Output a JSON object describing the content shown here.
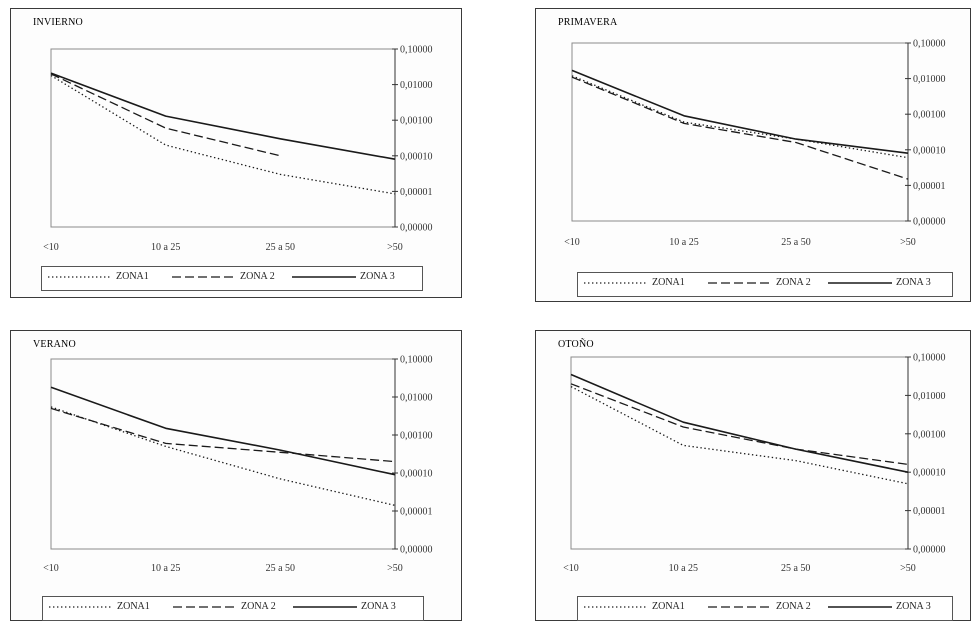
{
  "zone_labels": [
    "ZONA1",
    "ZONA 2",
    "ZONA 3"
  ],
  "colors": {
    "line": "#1a1a1a",
    "zona1": "#444444",
    "zona2": "#2b2b2b",
    "zona3": "#111111"
  },
  "chart_data": [
    {
      "type": "line",
      "title": "INVIERNO",
      "categories": [
        "<10",
        "10 a 25",
        "25 a 50",
        ">50"
      ],
      "y_ticks": [
        "0,10000",
        "0,01000",
        "0,00100",
        "0,00010",
        "0,00001",
        "0,00000"
      ],
      "yscale": "log",
      "ylim": [
        1e-06,
        0.1
      ],
      "legend_labels": [
        "ZONA1",
        "ZONA 2",
        "ZONA 3"
      ],
      "series": [
        {
          "name": "ZONA1",
          "style": "dotted",
          "values": [
            0.018,
            0.0002,
            3e-05,
            8.5e-06
          ]
        },
        {
          "name": "ZONA 2",
          "style": "dashed",
          "values": [
            0.02,
            0.0006,
            0.0001,
            null
          ]
        },
        {
          "name": "ZONA 3",
          "style": "solid",
          "values": [
            0.021,
            0.0013,
            0.0003,
            8e-05
          ]
        }
      ]
    },
    {
      "type": "line",
      "title": "PRIMAVERA",
      "categories": [
        "<10",
        "10 a 25",
        "25 a 50",
        ">50"
      ],
      "y_ticks": [
        "0,10000",
        "0,01000",
        "0,00100",
        "0,00010",
        "0,00001",
        "0,00000"
      ],
      "yscale": "log",
      "ylim": [
        1e-06,
        0.1
      ],
      "legend_labels": [
        "ZONA1",
        "ZONA 2",
        "ZONA 3"
      ],
      "series": [
        {
          "name": "ZONA1",
          "style": "dotted",
          "values": [
            0.012,
            0.0006,
            0.0002,
            6e-05
          ]
        },
        {
          "name": "ZONA 2",
          "style": "dashed",
          "values": [
            0.011,
            0.00055,
            0.00016,
            1.5e-05
          ]
        },
        {
          "name": "ZONA 3",
          "style": "solid",
          "values": [
            0.017,
            0.0009,
            0.0002,
            8e-05
          ]
        }
      ]
    },
    {
      "type": "line",
      "title": "VERANO",
      "categories": [
        "<10",
        "10 a 25",
        "25 a 50",
        ">50"
      ],
      "y_ticks": [
        "0,10000",
        "0,01000",
        "0,00100",
        "0,00010",
        "0,00001",
        "0,00000"
      ],
      "yscale": "log",
      "ylim": [
        1e-06,
        0.1
      ],
      "legend_labels": [
        "ZONA1",
        "ZONA 2",
        "ZONA 3"
      ],
      "series": [
        {
          "name": "ZONA1",
          "style": "dotted",
          "values": [
            0.0055,
            0.0005,
            7e-05,
            1.4e-05
          ]
        },
        {
          "name": "ZONA 2",
          "style": "dashed",
          "values": [
            0.005,
            0.0006,
            0.00035,
            0.0002
          ]
        },
        {
          "name": "ZONA 3",
          "style": "solid",
          "values": [
            0.018,
            0.0015,
            0.0004,
            9e-05
          ]
        }
      ]
    },
    {
      "type": "line",
      "title": "OTOÑO",
      "categories": [
        "<10",
        "10 a 25",
        "25 a 50",
        ">50"
      ],
      "y_ticks": [
        "0,10000",
        "0,01000",
        "0,00100",
        "0,00010",
        "0,00001",
        "0,00000"
      ],
      "yscale": "log",
      "ylim": [
        1e-06,
        0.1
      ],
      "legend_labels": [
        "ZONA1",
        "ZONA 2",
        "ZONA 3"
      ],
      "series": [
        {
          "name": "ZONA1",
          "style": "dotted",
          "values": [
            0.017,
            0.0005,
            0.0002,
            5e-05
          ]
        },
        {
          "name": "ZONA 2",
          "style": "dashed",
          "values": [
            0.02,
            0.0015,
            0.0004,
            0.00016
          ]
        },
        {
          "name": "ZONA 3",
          "style": "solid",
          "values": [
            0.035,
            0.002,
            0.0004,
            0.0001
          ]
        }
      ]
    }
  ]
}
